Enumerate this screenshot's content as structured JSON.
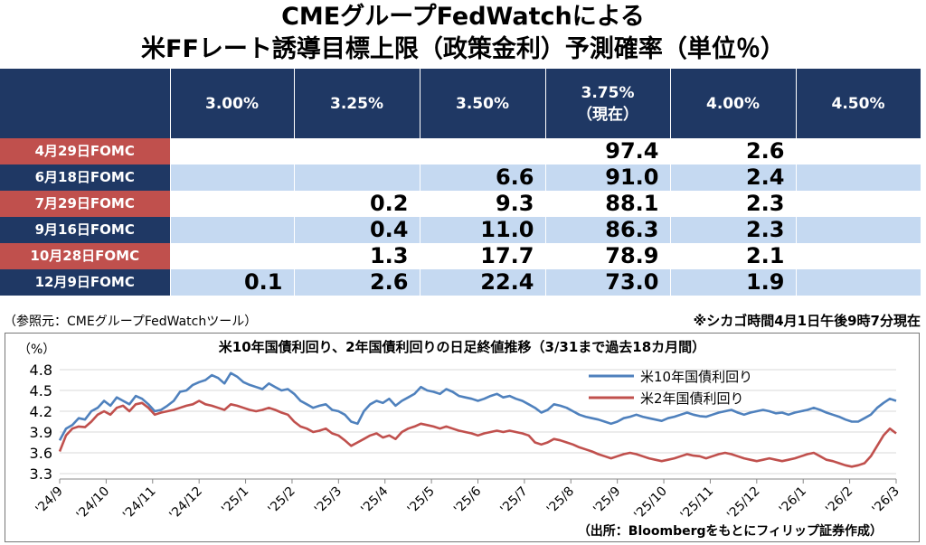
{
  "title_line1": "CMEグループFedWatchによる",
  "title_line2": "米FFレート誘導目標上限（政策金利）予測確率（単位％）",
  "table": {
    "header_blank": "",
    "columns": [
      "3.00%",
      "3.25%",
      "3.50%",
      "3.75%",
      "4.00%",
      "4.50%"
    ],
    "column_sub": [
      "",
      "",
      "",
      "（現在）",
      "",
      ""
    ],
    "rows": [
      {
        "label": "4月29日FOMC",
        "values": [
          "",
          "",
          "",
          "97.4",
          "2.6",
          ""
        ]
      },
      {
        "label": "6月18日FOMC",
        "values": [
          "",
          "",
          "6.6",
          "91.0",
          "2.4",
          ""
        ]
      },
      {
        "label": "7月29日FOMC",
        "values": [
          "",
          "0.2",
          "9.3",
          "88.1",
          "2.3",
          ""
        ]
      },
      {
        "label": "9月16日FOMC",
        "values": [
          "",
          "0.4",
          "11.0",
          "86.3",
          "2.3",
          ""
        ]
      },
      {
        "label": "10月28日FOMC",
        "values": [
          "",
          "1.3",
          "17.7",
          "78.9",
          "2.1",
          ""
        ]
      },
      {
        "label": "12月9日FOMC",
        "values": [
          "0.1",
          "2.6",
          "22.4",
          "73.0",
          "1.9",
          ""
        ]
      }
    ]
  },
  "source_note": "（参照元：CMEグループFedWatchツール）",
  "time_note": "※シカゴ時間4月1日午後9時7分現在",
  "chart_source": "（出所：Bloombergをもとにフィリップ証券作成）",
  "colors": {
    "header_bg": "#1f3864",
    "label_red": "#c0504d",
    "stripe": "#c5d9f1",
    "us10y": "#4f81bd",
    "us2y": "#c0504d"
  },
  "chart_data": {
    "type": "line",
    "title": "米10年国債利回り、2年国債利回りの日足終値推移（3/31まで過去18カ月間）",
    "ylabel": "（%）",
    "ylim": [
      3.3,
      4.8
    ],
    "yticks": [
      4.8,
      4.5,
      4.2,
      3.9,
      3.6,
      3.3
    ],
    "xlabels": [
      "'24/9",
      "'24/10",
      "'24/11",
      "'24/12",
      "'25/1",
      "'25/2",
      "'25/3",
      "'25/4",
      "'25/5",
      "'25/6",
      "'25/7",
      "'25/8",
      "'25/9",
      "'25/10",
      "'25/11",
      "'25/12",
      "'26/1",
      "'26/2",
      "'26/3"
    ],
    "legend": [
      "米10年国債利回り",
      "米2年国債利回り"
    ],
    "series": [
      {
        "name": "米10年国債利回り",
        "color": "#4f81bd",
        "values": [
          3.78,
          3.95,
          4.0,
          4.1,
          4.08,
          4.2,
          4.25,
          4.35,
          4.28,
          4.4,
          4.35,
          4.3,
          4.42,
          4.38,
          4.3,
          4.2,
          4.22,
          4.28,
          4.35,
          4.48,
          4.5,
          4.58,
          4.62,
          4.65,
          4.72,
          4.68,
          4.6,
          4.75,
          4.7,
          4.62,
          4.58,
          4.55,
          4.52,
          4.6,
          4.55,
          4.5,
          4.52,
          4.45,
          4.35,
          4.3,
          4.25,
          4.28,
          4.3,
          4.22,
          4.2,
          4.15,
          4.05,
          4.02,
          4.2,
          4.3,
          4.35,
          4.32,
          4.38,
          4.28,
          4.35,
          4.4,
          4.45,
          4.55,
          4.5,
          4.48,
          4.45,
          4.52,
          4.48,
          4.42,
          4.4,
          4.38,
          4.35,
          4.38,
          4.42,
          4.45,
          4.4,
          4.42,
          4.38,
          4.35,
          4.3,
          4.25,
          4.18,
          4.22,
          4.3,
          4.28,
          4.25,
          4.2,
          4.15,
          4.12,
          4.1,
          4.08,
          4.05,
          4.02,
          4.05,
          4.1,
          4.12,
          4.15,
          4.12,
          4.1,
          4.08,
          4.06,
          4.1,
          4.12,
          4.15,
          4.18,
          4.15,
          4.13,
          4.12,
          4.15,
          4.18,
          4.2,
          4.22,
          4.18,
          4.15,
          4.18,
          4.2,
          4.22,
          4.2,
          4.17,
          4.18,
          4.15,
          4.18,
          4.2,
          4.22,
          4.25,
          4.22,
          4.18,
          4.15,
          4.12,
          4.08,
          4.05,
          4.05,
          4.1,
          4.15,
          4.25,
          4.32,
          4.38,
          4.35
        ]
      },
      {
        "name": "米2年国債利回り",
        "color": "#c0504d",
        "values": [
          3.62,
          3.85,
          3.95,
          3.98,
          3.97,
          4.05,
          4.15,
          4.2,
          4.15,
          4.25,
          4.28,
          4.2,
          4.3,
          4.32,
          4.25,
          4.15,
          4.18,
          4.2,
          4.22,
          4.25,
          4.28,
          4.3,
          4.35,
          4.3,
          4.28,
          4.25,
          4.22,
          4.3,
          4.28,
          4.25,
          4.22,
          4.2,
          4.22,
          4.25,
          4.22,
          4.18,
          4.15,
          4.05,
          3.98,
          3.95,
          3.9,
          3.92,
          3.95,
          3.88,
          3.85,
          3.78,
          3.7,
          3.75,
          3.8,
          3.85,
          3.88,
          3.82,
          3.85,
          3.8,
          3.9,
          3.95,
          3.98,
          4.02,
          4.0,
          3.98,
          3.95,
          3.98,
          3.95,
          3.92,
          3.9,
          3.88,
          3.85,
          3.88,
          3.9,
          3.92,
          3.9,
          3.92,
          3.9,
          3.88,
          3.85,
          3.75,
          3.72,
          3.75,
          3.8,
          3.78,
          3.75,
          3.72,
          3.68,
          3.65,
          3.62,
          3.58,
          3.55,
          3.52,
          3.55,
          3.58,
          3.6,
          3.58,
          3.55,
          3.52,
          3.5,
          3.48,
          3.5,
          3.52,
          3.55,
          3.58,
          3.56,
          3.55,
          3.52,
          3.55,
          3.58,
          3.6,
          3.58,
          3.55,
          3.52,
          3.5,
          3.48,
          3.5,
          3.52,
          3.5,
          3.48,
          3.5,
          3.52,
          3.55,
          3.58,
          3.6,
          3.55,
          3.5,
          3.48,
          3.45,
          3.42,
          3.4,
          3.42,
          3.45,
          3.55,
          3.7,
          3.85,
          3.95,
          3.88
        ]
      }
    ]
  }
}
